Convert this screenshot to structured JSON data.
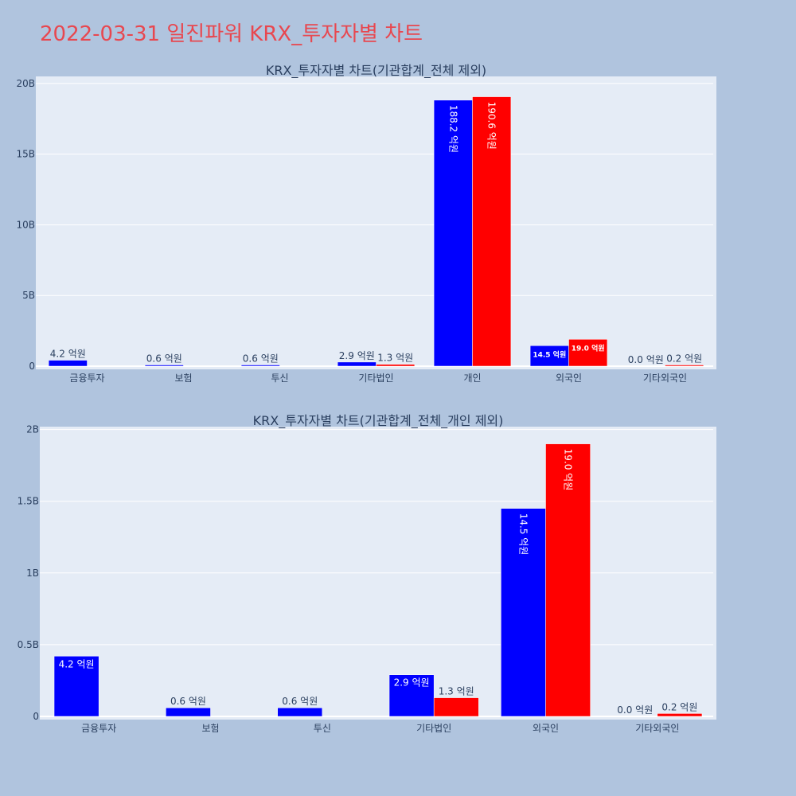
{
  "page": {
    "title": "2022-03-31 일진파워 KRX_투자자별 차트"
  },
  "chart_data": [
    {
      "type": "bar",
      "title": "KRX_투자자별 차트(기관합계_전체 제외)",
      "categories": [
        "금융투자",
        "보험",
        "투신",
        "기타법인",
        "개인",
        "외국인",
        "기타외국인"
      ],
      "series": [
        {
          "color": "#0000ff",
          "values": [
            0.42,
            0.06,
            0.06,
            0.29,
            18.82,
            1.45,
            0.0
          ],
          "labels": [
            "4.2 억원",
            "0.6 억원",
            "0.6 억원",
            "2.9 억원",
            "188.2 억원",
            "14.5 억원",
            "0.0 억원"
          ]
        },
        {
          "color": "#ff0000",
          "values": [
            0,
            0,
            0,
            0.13,
            19.06,
            1.9,
            0.02
          ],
          "labels": [
            "",
            "",
            "",
            "1.3 억원",
            "190.6 억원",
            "19.0 억원",
            "0.2 억원"
          ]
        }
      ],
      "yunit": "B",
      "ylim": [
        0,
        20.5
      ],
      "yticks": [
        0,
        5,
        10,
        15,
        20
      ],
      "ytick_labels": [
        "0",
        "5B",
        "10B",
        "15B",
        "20B"
      ],
      "grid": true
    },
    {
      "type": "bar",
      "title": "KRX_투자자별 차트(기관합계_전체_개인 제외)",
      "categories": [
        "금융투자",
        "보험",
        "투신",
        "기타법인",
        "외국인",
        "기타외국인"
      ],
      "series": [
        {
          "color": "#0000ff",
          "values": [
            0.42,
            0.06,
            0.06,
            0.29,
            1.45,
            0.0
          ],
          "labels": [
            "4.2 억원",
            "0.6 억원",
            "0.6 억원",
            "2.9 억원",
            "14.5 억원",
            "0.0 억원"
          ]
        },
        {
          "color": "#ff0000",
          "values": [
            0,
            0,
            0,
            0.13,
            1.9,
            0.02
          ],
          "labels": [
            "",
            "",
            "",
            "1.3 억원",
            "19.0 억원",
            "0.2 억원"
          ]
        }
      ],
      "yunit": "B",
      "ylim": [
        0,
        2.02
      ],
      "yticks": [
        0,
        0.5,
        1,
        1.5,
        2
      ],
      "ytick_labels": [
        "0",
        "0.5B",
        "1B",
        "1.5B",
        "2B"
      ],
      "grid": true
    }
  ]
}
